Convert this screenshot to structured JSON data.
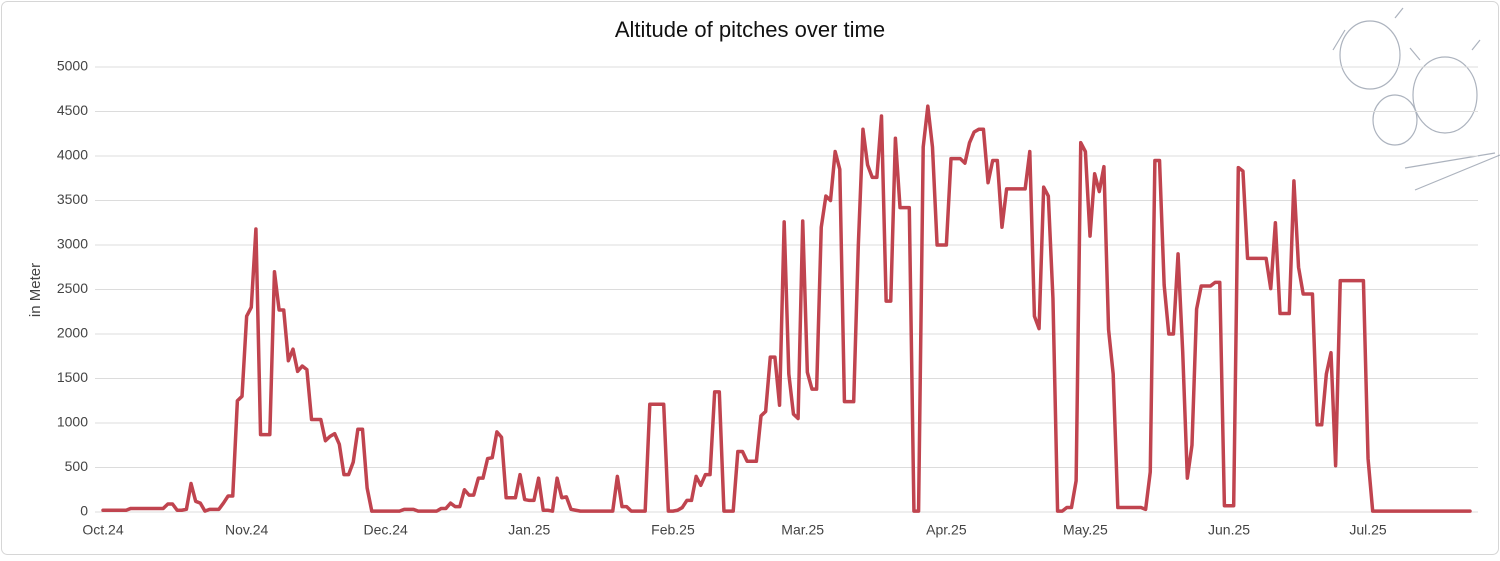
{
  "chart_data": {
    "type": "line",
    "title": "Altitude of pitches over time",
    "y_label": "in Meter",
    "color": "#c0444f",
    "grid": true,
    "ylim": [
      0,
      5000
    ],
    "yticks": [
      0,
      500,
      1000,
      1500,
      2000,
      2500,
      3000,
      3500,
      4000,
      4500,
      5000
    ],
    "categories": [
      "Oct.24",
      null,
      null,
      null,
      null,
      null,
      null,
      null,
      null,
      null,
      null,
      null,
      null,
      null,
      null,
      null,
      null,
      null,
      null,
      null,
      null,
      null,
      null,
      null,
      null,
      null,
      null,
      null,
      null,
      null,
      null,
      "Nov.24",
      null,
      null,
      null,
      null,
      null,
      null,
      null,
      null,
      null,
      null,
      null,
      null,
      null,
      null,
      null,
      null,
      null,
      null,
      null,
      null,
      null,
      null,
      null,
      null,
      null,
      null,
      null,
      null,
      null,
      "Dec.24",
      null,
      null,
      null,
      null,
      null,
      null,
      null,
      null,
      null,
      null,
      null,
      null,
      null,
      null,
      null,
      null,
      null,
      null,
      null,
      null,
      null,
      null,
      null,
      null,
      null,
      null,
      null,
      null,
      null,
      null,
      "Jan.25",
      null,
      null,
      null,
      null,
      null,
      null,
      null,
      null,
      null,
      null,
      null,
      null,
      null,
      null,
      null,
      null,
      null,
      null,
      null,
      null,
      null,
      null,
      null,
      null,
      null,
      null,
      null,
      null,
      null,
      null,
      "Feb.25",
      null,
      null,
      null,
      null,
      null,
      null,
      null,
      null,
      null,
      null,
      null,
      null,
      null,
      null,
      null,
      null,
      null,
      null,
      null,
      null,
      null,
      null,
      null,
      null,
      null,
      null,
      null,
      "Mar.25",
      null,
      null,
      null,
      null,
      null,
      null,
      null,
      null,
      null,
      null,
      null,
      null,
      null,
      null,
      null,
      null,
      null,
      null,
      null,
      null,
      null,
      null,
      null,
      null,
      null,
      null,
      null,
      null,
      null,
      null,
      "Apr.25",
      null,
      null,
      null,
      null,
      null,
      null,
      null,
      null,
      null,
      null,
      null,
      null,
      null,
      null,
      null,
      null,
      null,
      null,
      null,
      null,
      null,
      null,
      null,
      null,
      null,
      null,
      null,
      null,
      null,
      "May.25",
      null,
      null,
      null,
      null,
      null,
      null,
      null,
      null,
      null,
      null,
      null,
      null,
      null,
      null,
      null,
      null,
      null,
      null,
      null,
      null,
      null,
      null,
      null,
      null,
      null,
      null,
      null,
      null,
      null,
      null,
      "Jun.25",
      null,
      null,
      null,
      null,
      null,
      null,
      null,
      null,
      null,
      null,
      null,
      null,
      null,
      null,
      null,
      null,
      null,
      null,
      null,
      null,
      null,
      null,
      null,
      null,
      null,
      null,
      null,
      null,
      null,
      "Jul.25",
      null,
      null,
      null,
      null,
      null,
      null,
      null,
      null,
      null,
      null,
      null,
      null,
      null,
      null,
      null,
      null,
      null,
      null,
      null,
      null,
      null,
      null
    ],
    "values": [
      20,
      20,
      20,
      20,
      20,
      20,
      40,
      40,
      40,
      40,
      40,
      40,
      40,
      40,
      90,
      90,
      20,
      20,
      30,
      320,
      120,
      100,
      10,
      30,
      30,
      30,
      100,
      180,
      180,
      1250,
      1300,
      2200,
      2300,
      3180,
      870,
      870,
      870,
      2700,
      2270,
      2270,
      1700,
      1830,
      1580,
      1640,
      1600,
      1040,
      1040,
      1040,
      800,
      850,
      880,
      760,
      420,
      420,
      560,
      930,
      930,
      270,
      10,
      10,
      10,
      10,
      10,
      10,
      10,
      30,
      30,
      30,
      10,
      10,
      10,
      10,
      10,
      40,
      40,
      100,
      60,
      60,
      250,
      190,
      190,
      380,
      380,
      600,
      610,
      900,
      840,
      160,
      160,
      160,
      420,
      140,
      130,
      130,
      380,
      20,
      20,
      10,
      380,
      160,
      170,
      30,
      20,
      10,
      10,
      10,
      10,
      10,
      10,
      10,
      10,
      400,
      60,
      60,
      10,
      10,
      10,
      10,
      1210,
      1210,
      1210,
      1210,
      10,
      10,
      20,
      50,
      130,
      130,
      400,
      300,
      420,
      420,
      1350,
      1350,
      10,
      10,
      10,
      680,
      680,
      570,
      570,
      570,
      1080,
      1130,
      1740,
      1740,
      1200,
      3260,
      1550,
      1100,
      1050,
      3270,
      1570,
      1380,
      1380,
      3200,
      3550,
      3500,
      4050,
      3850,
      1240,
      1240,
      1240,
      3000,
      4300,
      3900,
      3760,
      3760,
      4450,
      2370,
      2370,
      4200,
      3420,
      3420,
      3420,
      10,
      10,
      4100,
      4560,
      4100,
      3000,
      3000,
      3000,
      3970,
      3970,
      3970,
      3920,
      4150,
      4270,
      4300,
      4300,
      3700,
      3950,
      3950,
      3200,
      3630,
      3630,
      3630,
      3630,
      3630,
      4050,
      2200,
      2060,
      3650,
      3550,
      2400,
      10,
      10,
      50,
      50,
      350,
      4150,
      4050,
      3100,
      3800,
      3600,
      3880,
      2050,
      1550,
      50,
      50,
      50,
      50,
      50,
      50,
      30,
      450,
      3950,
      3950,
      2550,
      2000,
      2000,
      2900,
      1800,
      380,
      750,
      2280,
      2540,
      2540,
      2540,
      2580,
      2580,
      70,
      70,
      70,
      3870,
      3830,
      2850,
      2850,
      2850,
      2850,
      2850,
      2510,
      3250,
      2230,
      2230,
      2230,
      3720,
      2750,
      2450,
      2450,
      2450,
      980,
      980,
      1550,
      1790,
      520,
      2600,
      2600,
      2600,
      2600,
      2600,
      2600,
      600,
      10,
      10,
      10,
      10,
      10,
      10,
      10,
      10,
      10,
      10,
      10,
      10,
      10,
      10,
      10,
      10,
      10,
      10,
      10,
      10,
      10,
      10
    ]
  }
}
